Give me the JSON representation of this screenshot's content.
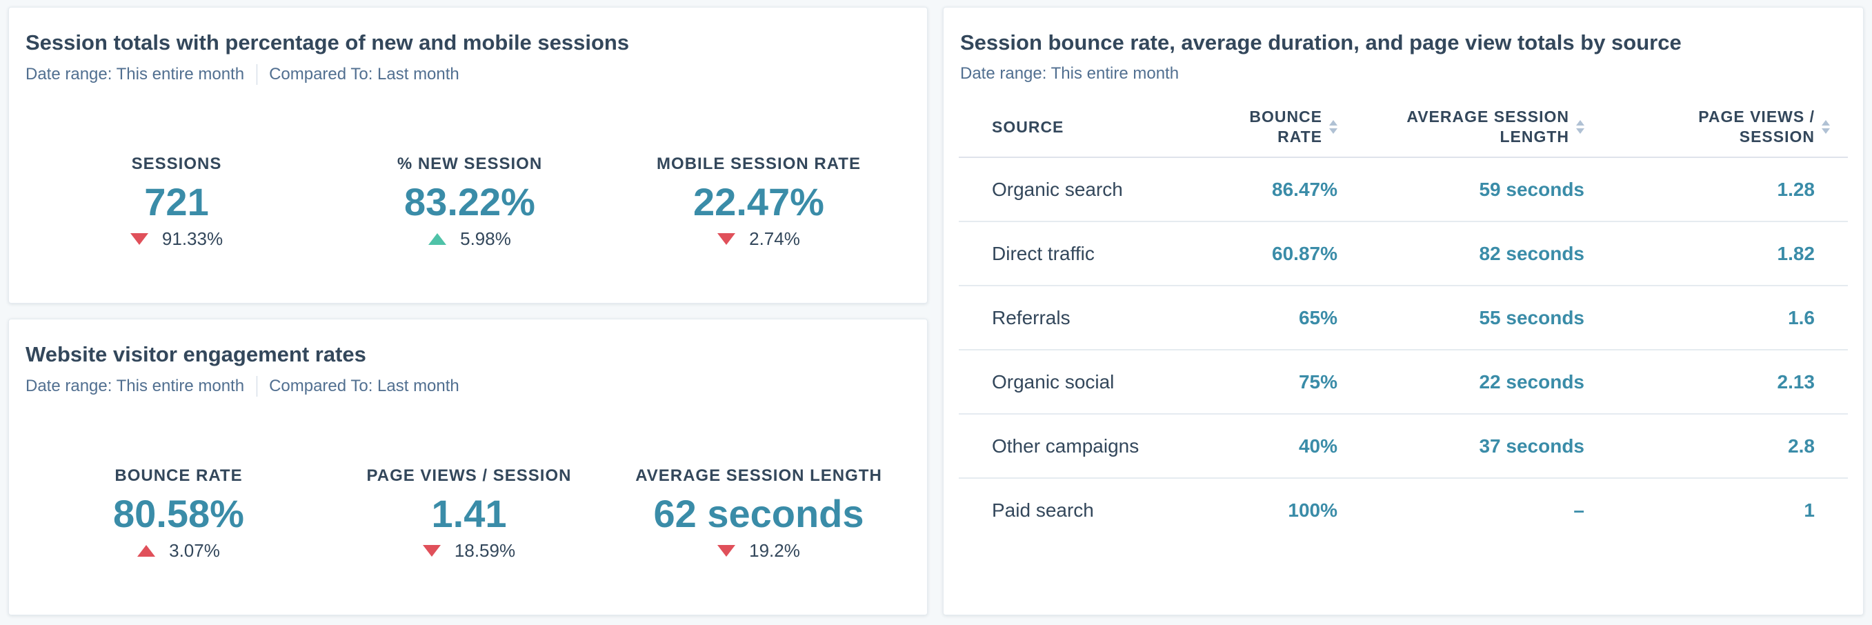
{
  "sessions_card": {
    "title": "Session totals with percentage of new and mobile sessions",
    "date_range": "Date range: This entire month",
    "compared_to": "Compared To: Last month",
    "kpis": [
      {
        "label": "SESSIONS",
        "value": "721",
        "change": "91.33%",
        "direction": "down"
      },
      {
        "label": "% NEW SESSION",
        "value": "83.22%",
        "change": "5.98%",
        "direction": "up"
      },
      {
        "label": "MOBILE SESSION RATE",
        "value": "22.47%",
        "change": "2.74%",
        "direction": "down"
      }
    ]
  },
  "engagement_card": {
    "title": "Website visitor engagement rates",
    "date_range": "Date range: This entire month",
    "compared_to": "Compared To: Last month",
    "kpis": [
      {
        "label": "BOUNCE RATE",
        "value": "80.58%",
        "change": "3.07%",
        "direction": "up"
      },
      {
        "label": "PAGE VIEWS / SESSION",
        "value": "1.41",
        "change": "18.59%",
        "direction": "down"
      },
      {
        "label": "AVERAGE SESSION LENGTH",
        "value": "62 seconds",
        "change": "19.2%",
        "direction": "down"
      }
    ]
  },
  "table_card": {
    "title": "Session bounce rate, average duration, and page view totals by source",
    "date_range": "Date range: This entire month",
    "columns": {
      "source": "SOURCE",
      "bounce_line1": "BOUNCE",
      "bounce_line2": "RATE",
      "avg_line1": "AVERAGE SESSION",
      "avg_line2": "LENGTH",
      "pv_line1": "PAGE VIEWS /",
      "pv_line2": "SESSION"
    },
    "rows": [
      {
        "source": "Organic search",
        "bounce_rate": "86.47%",
        "avg_length": "59 seconds",
        "page_views": "1.28"
      },
      {
        "source": "Direct traffic",
        "bounce_rate": "60.87%",
        "avg_length": "82 seconds",
        "page_views": "1.82"
      },
      {
        "source": "Referrals",
        "bounce_rate": "65%",
        "avg_length": "55 seconds",
        "page_views": "1.6"
      },
      {
        "source": "Organic social",
        "bounce_rate": "75%",
        "avg_length": "22 seconds",
        "page_views": "2.13"
      },
      {
        "source": "Other campaigns",
        "bounce_rate": "40%",
        "avg_length": "37 seconds",
        "page_views": "2.8"
      },
      {
        "source": "Paid search",
        "bounce_rate": "100%",
        "avg_length": "–",
        "page_views": "1"
      }
    ]
  },
  "colors": {
    "value_teal": "#3a8ca8",
    "down_red": "#e0505a",
    "up_green": "#4fc2a8",
    "text_dark": "#33475b"
  }
}
